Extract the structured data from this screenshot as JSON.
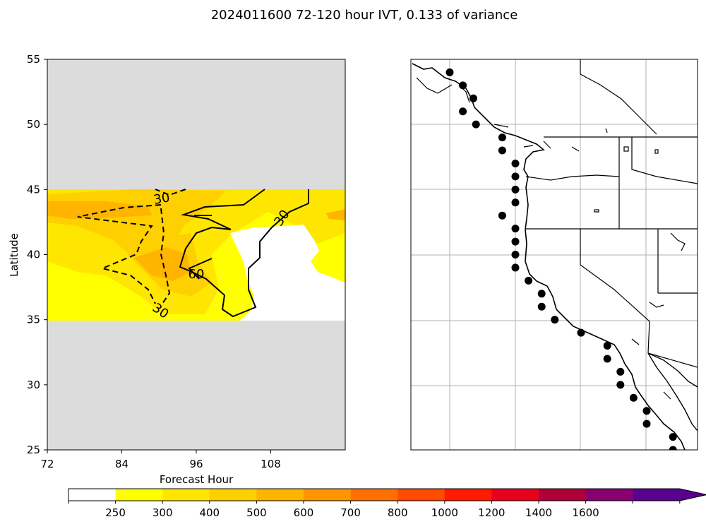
{
  "title": "2024011600 72-120 hour IVT, 0.133 of variance",
  "chart_data": [
    {
      "type": "heatmap",
      "xlabel": "Forecast Hour",
      "ylabel": "Latitude",
      "xlim": [
        72,
        120
      ],
      "ylim": [
        25,
        55
      ],
      "xticks": [
        72,
        84,
        96,
        108
      ],
      "yticks": [
        25,
        30,
        35,
        40,
        45,
        50,
        55
      ],
      "data_lat_range": [
        35,
        45
      ],
      "background_color": "#dcdcdc",
      "contours": [
        {
          "level": "30",
          "style": "solid"
        },
        {
          "level": "60",
          "style": "solid"
        },
        {
          "level": "30",
          "style": "dashed"
        },
        {
          "level": "30",
          "style": "dashed"
        }
      ]
    },
    {
      "type": "scatter",
      "description": "map of western North America coastline with points",
      "gridlines": true,
      "points": [
        {
          "lon": -125.0,
          "lat": 54.0
        },
        {
          "lon": -124.0,
          "lat": 53.0
        },
        {
          "lon": -123.2,
          "lat": 52.0
        },
        {
          "lon": -124.0,
          "lat": 51.0
        },
        {
          "lon": -123.0,
          "lat": 50.0
        },
        {
          "lon": -121.0,
          "lat": 49.0
        },
        {
          "lon": -121.0,
          "lat": 48.0
        },
        {
          "lon": -120.0,
          "lat": 47.0
        },
        {
          "lon": -120.0,
          "lat": 46.0
        },
        {
          "lon": -120.0,
          "lat": 45.0
        },
        {
          "lon": -120.0,
          "lat": 44.0
        },
        {
          "lon": -121.0,
          "lat": 43.0
        },
        {
          "lon": -120.0,
          "lat": 42.0
        },
        {
          "lon": -120.0,
          "lat": 41.0
        },
        {
          "lon": -120.0,
          "lat": 40.0
        },
        {
          "lon": -120.0,
          "lat": 39.0
        },
        {
          "lon": -119.0,
          "lat": 38.0
        },
        {
          "lon": -118.0,
          "lat": 37.0
        },
        {
          "lon": -118.0,
          "lat": 36.0
        },
        {
          "lon": -117.0,
          "lat": 35.0
        },
        {
          "lon": -115.0,
          "lat": 34.0
        },
        {
          "lon": -113.0,
          "lat": 33.0
        },
        {
          "lon": -113.0,
          "lat": 32.0
        },
        {
          "lon": -112.0,
          "lat": 31.0
        },
        {
          "lon": -112.0,
          "lat": 30.0
        },
        {
          "lon": -111.0,
          "lat": 29.0
        },
        {
          "lon": -110.0,
          "lat": 28.0
        },
        {
          "lon": -110.0,
          "lat": 27.0
        },
        {
          "lon": -108.0,
          "lat": 26.0
        },
        {
          "lon": -108.0,
          "lat": 25.0
        }
      ]
    }
  ],
  "colorbar": {
    "tick_labels": [
      "250",
      "300",
      "400",
      "500",
      "600",
      "700",
      "800",
      "1000",
      "1200",
      "1400",
      "1600"
    ],
    "colors": [
      "#ffffff",
      "#ffff00",
      "#ffe600",
      "#ffd000",
      "#ffb400",
      "#ff9600",
      "#ff7000",
      "#ff4a00",
      "#ff1a00",
      "#e8001c",
      "#b00038",
      "#880070",
      "#5a0090"
    ]
  }
}
